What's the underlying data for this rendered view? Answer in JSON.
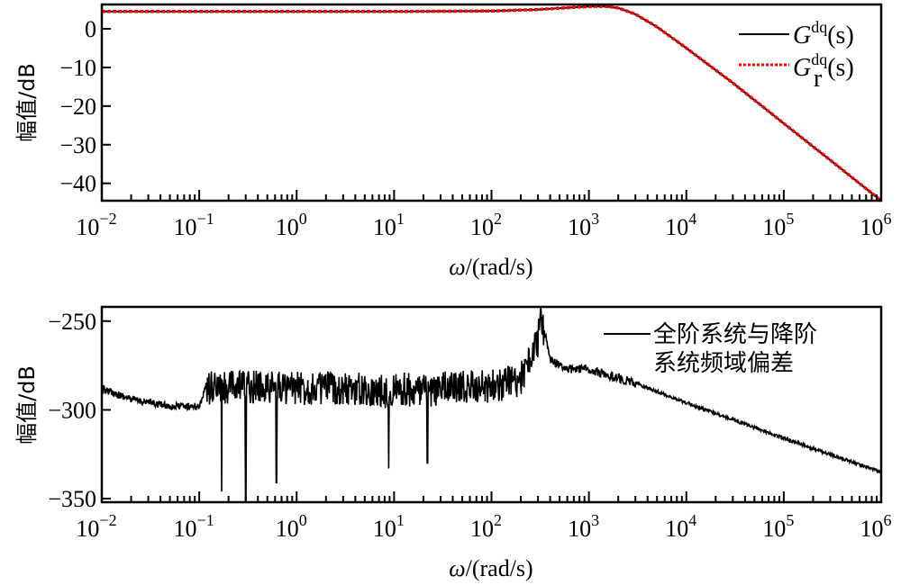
{
  "chart_data": [
    {
      "type": "line",
      "panel": "top",
      "title": "",
      "xlabel": "ω/(rad/s)",
      "ylabel": "幅值/dB",
      "xscale": "log",
      "xlim": [
        0.01,
        1000000
      ],
      "ylim": [
        -44.5,
        6.3
      ],
      "xticks": [
        "10^-2",
        "10^-1",
        "10^0",
        "10^1",
        "10^2",
        "10^3",
        "10^4",
        "10^5",
        "10^6"
      ],
      "yticks": [
        0,
        -10,
        -20,
        -30,
        -40
      ],
      "grid": false,
      "legend_position": "upper right",
      "series": [
        {
          "name": "G^dq(s)",
          "label_main": "G",
          "label_sup": "dq",
          "label_sub": "",
          "color": "#000000",
          "style": "solid",
          "x": [
            0.01,
            0.1,
            1,
            10,
            100,
            300,
            1000,
            1500,
            2000,
            3000,
            5000,
            10000,
            30000,
            100000,
            300000,
            1000000
          ],
          "y": [
            4.5,
            4.5,
            4.5,
            4.5,
            4.6,
            5.0,
            5.8,
            5.8,
            5.4,
            3.8,
            0.5,
            -5.0,
            -14.0,
            -24.5,
            -34.0,
            -44.5
          ]
        },
        {
          "name": "G_r^dq(s)",
          "label_main": "G",
          "label_sup": "dq",
          "label_sub": "r",
          "color": "#ff0000",
          "style": "dotted",
          "x": [
            0.01,
            0.1,
            1,
            10,
            100,
            300,
            1000,
            1500,
            2000,
            3000,
            5000,
            10000,
            30000,
            100000,
            300000,
            1000000
          ],
          "y": [
            4.5,
            4.5,
            4.5,
            4.5,
            4.6,
            5.0,
            5.8,
            5.8,
            5.4,
            3.8,
            0.5,
            -5.0,
            -14.0,
            -24.5,
            -34.0,
            -44.5
          ]
        }
      ]
    },
    {
      "type": "line",
      "panel": "bottom",
      "title": "",
      "xlabel": "ω/(rad/s)",
      "ylabel": "幅值/dB",
      "xscale": "log",
      "xlim": [
        0.01,
        1000000
      ],
      "ylim": [
        -352,
        -242
      ],
      "xticks": [
        "10^-2",
        "10^-1",
        "10^0",
        "10^1",
        "10^2",
        "10^3",
        "10^4",
        "10^5",
        "10^6"
      ],
      "yticks": [
        -250,
        -300,
        -350
      ],
      "grid": false,
      "legend_position": "upper right",
      "series": [
        {
          "name": "全阶系统与降阶系统频域偏差",
          "legend_lines": [
            "全阶系统与降阶",
            "系统频域偏差"
          ],
          "color": "#000000",
          "style": "solid",
          "x": [
            0.01,
            0.02,
            0.05,
            0.1,
            0.12,
            0.17,
            0.3,
            0.6,
            1,
            3,
            8.5,
            10,
            22,
            30,
            100,
            200,
            300,
            320,
            400,
            600,
            1000,
            3000,
            10000,
            100000,
            1000000
          ],
          "y": [
            -288,
            -294,
            -298,
            -298,
            -285,
            -285,
            -284,
            -284,
            -285,
            -285,
            -287,
            -285,
            -287,
            -285,
            -284,
            -280,
            -258,
            -243,
            -272,
            -277,
            -277,
            -285,
            -296,
            -316,
            -335
          ],
          "noise_band": {
            "x_start": 0.12,
            "x_end": 350,
            "amplitude_db": 12
          },
          "deep_notches": [
            {
              "x": 0.17,
              "y": -346
            },
            {
              "x": 0.3,
              "y": -352
            },
            {
              "x": 0.62,
              "y": -341
            },
            {
              "x": 8.8,
              "y": -333
            },
            {
              "x": 22,
              "y": -330
            }
          ]
        }
      ]
    }
  ],
  "axes": {
    "x_title_prefix": "ω",
    "x_title_suffix": "/(rad/s)",
    "y_title": "幅值/dB",
    "x_tick_base": "10",
    "x_tick_exponents": [
      "−2",
      "−1",
      "0",
      "1",
      "2",
      "3",
      "4",
      "5",
      "6"
    ],
    "top_y_tick_labels": [
      "0",
      "−10",
      "−20",
      "−30",
      "−40"
    ],
    "bottom_y_tick_labels": [
      "−250",
      "−300",
      "−350"
    ]
  },
  "legend": {
    "top": [
      {
        "main": "G",
        "sup": "dq",
        "sub": "",
        "suffix": "(s)"
      },
      {
        "main": "G",
        "sup": "dq",
        "sub": "r",
        "suffix": "(s)"
      }
    ],
    "bottom": [
      "全阶系统与降阶",
      "系统频域偏差"
    ]
  }
}
